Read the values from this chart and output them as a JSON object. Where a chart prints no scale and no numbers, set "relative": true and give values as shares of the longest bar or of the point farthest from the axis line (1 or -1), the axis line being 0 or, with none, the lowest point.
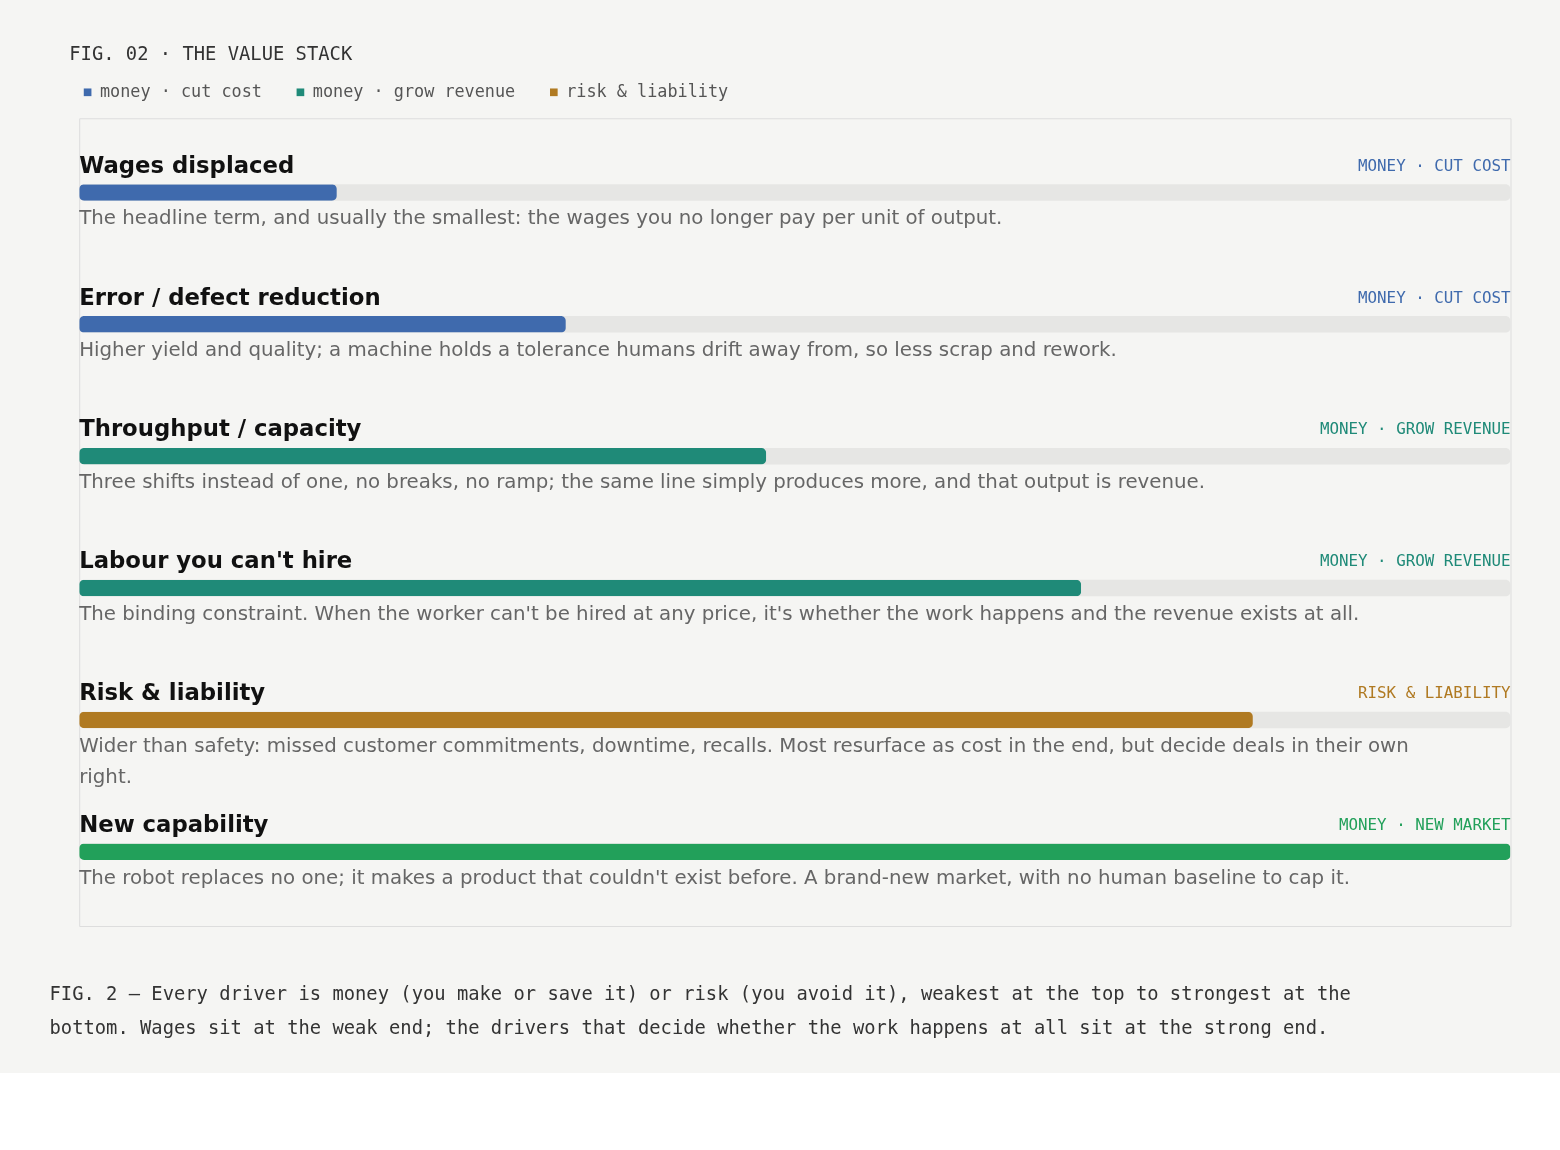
{
  "chart_data": {
    "type": "bar",
    "orientation": "horizontal",
    "relative": true,
    "title": "FIG. 02 · THE VALUE STACK",
    "categories": [
      "Wages displaced",
      "Error / defect reduction",
      "Throughput / capacity",
      "Labour you can't hire",
      "Risk & liability",
      "New capability"
    ],
    "series": [
      {
        "name": "money · cut cost",
        "color": "#3f6aad",
        "values": [
          0.18,
          0.34,
          null,
          null,
          null,
          null
        ]
      },
      {
        "name": "money · grow revenue",
        "color": "#1f8a78",
        "values": [
          null,
          null,
          0.48,
          0.7,
          null,
          null
        ]
      },
      {
        "name": "risk & liability",
        "color": "#b07a22",
        "values": [
          null,
          null,
          null,
          null,
          0.82,
          null
        ]
      },
      {
        "color": "#22a05a",
        "values": [
          null,
          null,
          null,
          null,
          null,
          1
        ]
      }
    ],
    "legend": "top left",
    "annotations": [
      "MONEY · CUT COST",
      "The headline term, and usually the smallest: the wages you no longer pay per unit of output.",
      "MONEY · CUT COST",
      "Higher yield and quality; a machine holds a tolerance humans drift away from, so less scrap and rework.",
      "MONEY · GROW REVENUE",
      "Three shifts instead of one, no breaks, no ramp; the same line simply produces more, and that output is revenue.",
      "MONEY · GROW REVENUE",
      "The binding constraint. When the worker can't be hired at any price, it's whether the work happens and the revenue exists at all.",
      "RISK & LIABILITY",
      "Wider than safety: missed customer commitments, downtime, recalls. Most resurface as cost in the end, but decide deals in their own right.",
      "MONEY · NEW MARKET",
      "The robot replaces no one; it makes a product that couldn't exist before. A brand-new market, with no human baseline to cap it.",
      "FIG. 2 — Every driver is money (you make or save it) or risk (you avoid it), weakest at the top to strongest at the bottom. Wages sit at the weak end; the drivers that decide whether the work happens at all sit at the strong end."
    ]
  }
}
